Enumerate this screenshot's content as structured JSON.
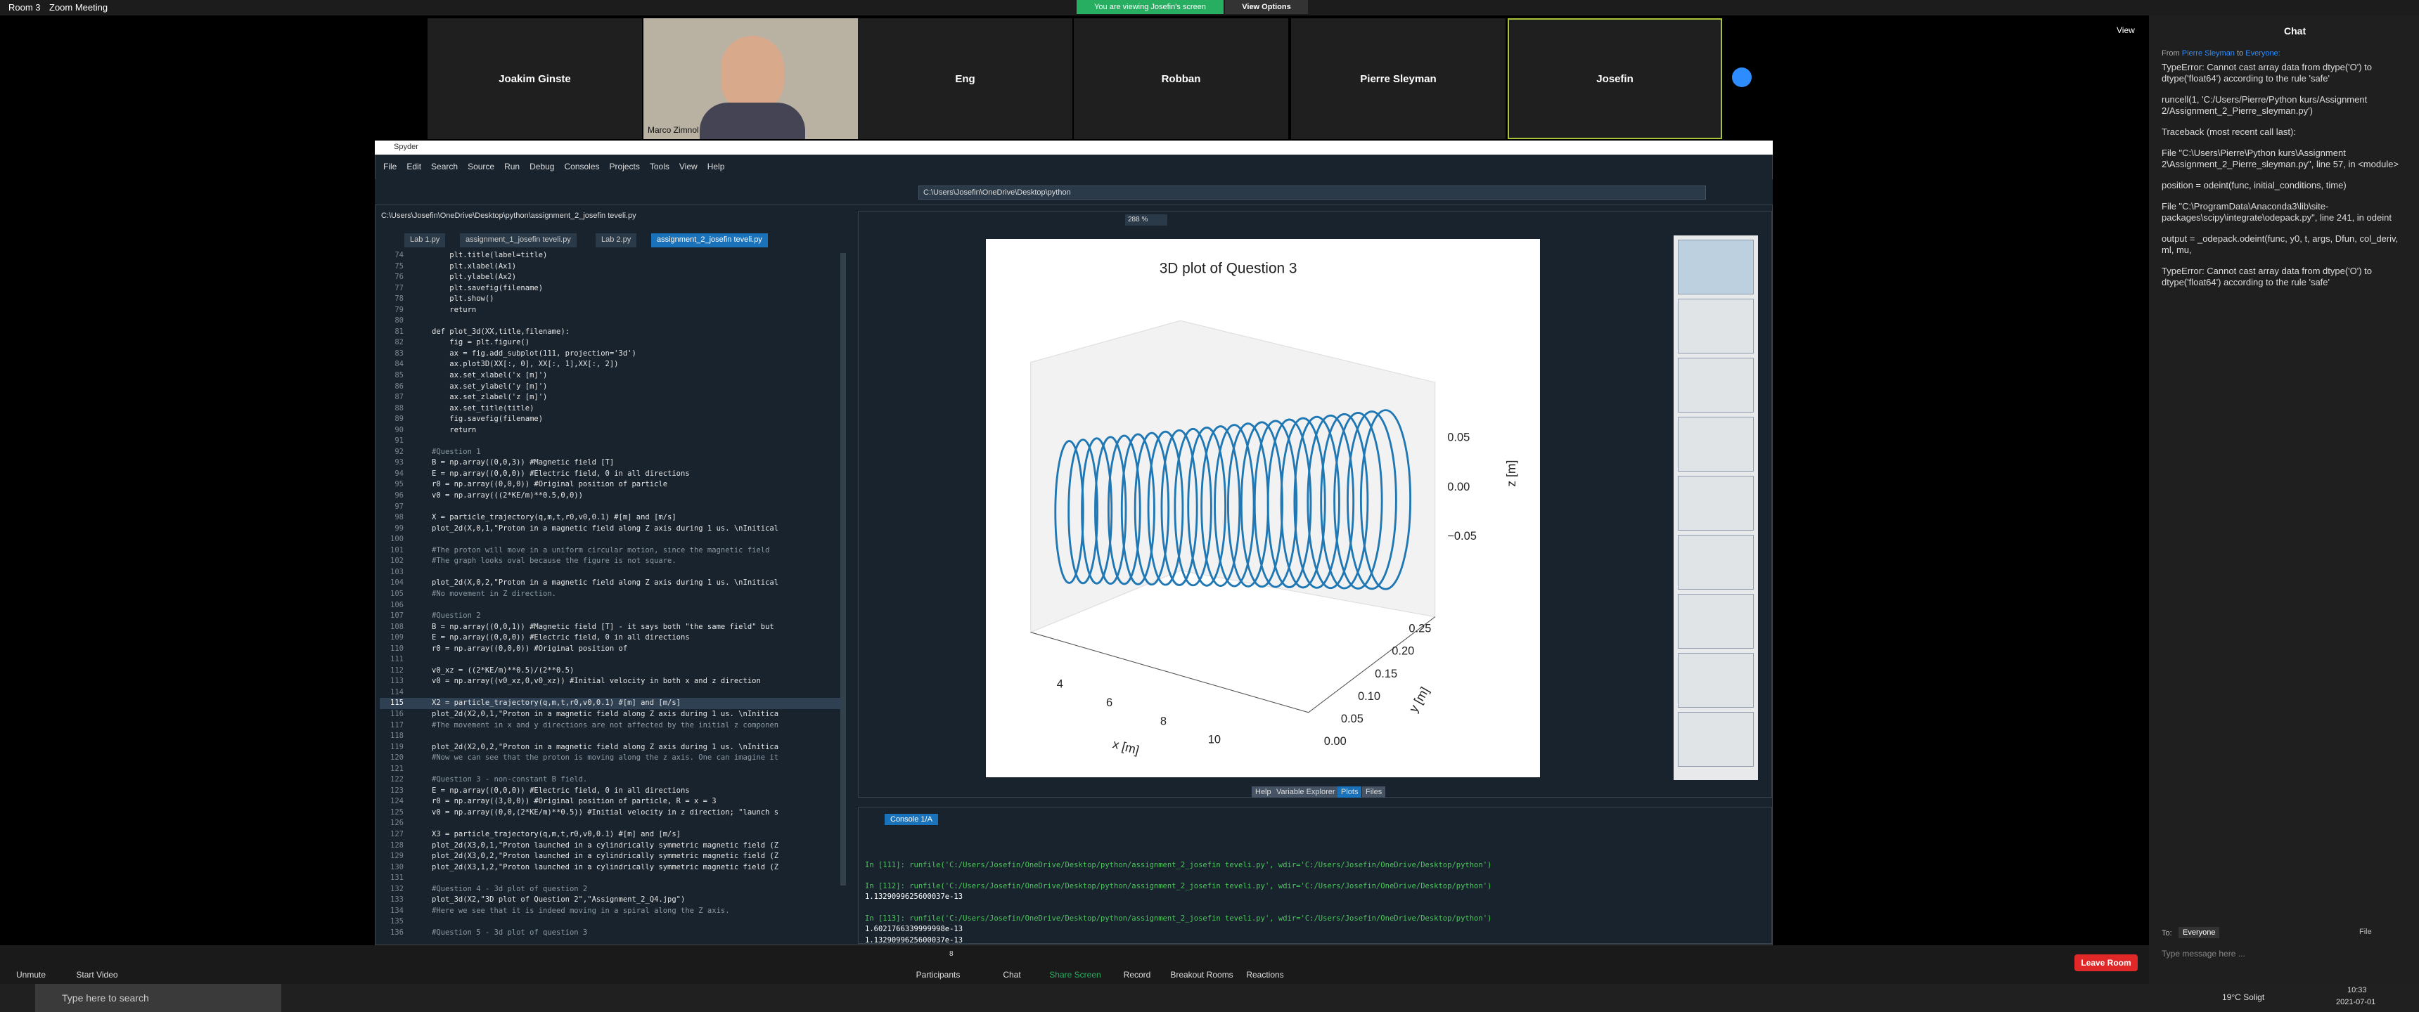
{
  "window": {
    "room": "Room 3",
    "app": "Zoom Meeting",
    "view": "View"
  },
  "banner": {
    "text": "You are viewing Josefin's screen",
    "button": "View Options"
  },
  "participants": [
    "Joakim Ginste",
    "Marco Zimnol",
    "Eng",
    "Robban",
    "Pierre Sleyman",
    "Josefin"
  ],
  "spyder": {
    "title": "Spyder",
    "menu": [
      "File",
      "Edit",
      "Search",
      "Source",
      "Run",
      "Debug",
      "Consoles",
      "Projects",
      "Tools",
      "View",
      "Help"
    ],
    "cwd": "C:\\Users\\Josefin\\OneDrive\\Desktop\\python",
    "editor_path": "C:\\Users\\Josefin\\OneDrive\\Desktop\\python\\assignment_2_josefin teveli.py",
    "tabs": [
      "Lab 1.py",
      "assignment_1_josefin teveli.py",
      "Lab 2.py",
      "assignment_2_josefin teveli.py"
    ],
    "code": [
      {
        "n": "74",
        "text": "    plt.title(label=title)"
      },
      {
        "n": "75",
        "text": "    plt.xlabel(Ax1)"
      },
      {
        "n": "76",
        "text": "    plt.ylabel(Ax2)"
      },
      {
        "n": "77",
        "text": "    plt.savefig(filename)"
      },
      {
        "n": "78",
        "text": "    plt.show()"
      },
      {
        "n": "79",
        "text": "    return"
      },
      {
        "n": "80"
      },
      {
        "n": "81",
        "text": "def plot_3d(XX,title,filename):"
      },
      {
        "n": "82",
        "text": "    fig = plt.figure()"
      },
      {
        "n": "83",
        "text": "    ax = fig.add_subplot(111, projection='3d')"
      },
      {
        "n": "84",
        "text": "    ax.plot3D(XX[:, 0], XX[:, 1],XX[:, 2])"
      },
      {
        "n": "85",
        "text": "    ax.set_xlabel('x [m]')"
      },
      {
        "n": "86",
        "text": "    ax.set_ylabel('y [m]')"
      },
      {
        "n": "87",
        "text": "    ax.set_zlabel('z [m]')"
      },
      {
        "n": "88",
        "text": "    ax.set_title(title)"
      },
      {
        "n": "89",
        "text": "    fig.savefig(filename)"
      },
      {
        "n": "90",
        "text": "    return"
      },
      {
        "n": "91"
      },
      {
        "n": "92",
        "text": "#Question 1"
      },
      {
        "n": "93",
        "text": "B = np.array((0,0,3)) #Magnetic field [T]"
      },
      {
        "n": "94",
        "text": "E = np.array((0,0,0)) #Electric field, 0 in all directions"
      },
      {
        "n": "95",
        "text": "r0 = np.array((0,0,0)) #Original position of particle"
      },
      {
        "n": "96",
        "text": "v0 = np.array(((2*KE/m)**0.5,0,0))"
      },
      {
        "n": "97"
      },
      {
        "n": "98",
        "text": "X = particle_trajectory(q,m,t,r0,v0,0.1) #[m] and [m/s]"
      },
      {
        "n": "99",
        "text": "plot_2d(X,0,1,\"Proton in a magnetic field along Z axis during 1 us. \\nInitical"
      },
      {
        "n": "100"
      },
      {
        "n": "101",
        "text": "#The proton will move in a uniform circular motion, since the magnetic field"
      },
      {
        "n": "102",
        "text": "#The graph looks oval because the figure is not square."
      },
      {
        "n": "103"
      },
      {
        "n": "104",
        "text": "plot_2d(X,0,2,\"Proton in a magnetic field along Z axis during 1 us. \\nInitical"
      },
      {
        "n": "105",
        "text": "#No movement in Z direction."
      },
      {
        "n": "106"
      },
      {
        "n": "107",
        "text": "#Question 2"
      },
      {
        "n": "108",
        "text": "B = np.array((0,0,1)) #Magnetic field [T] - it says both \"the same field\" but"
      },
      {
        "n": "109",
        "text": "E = np.array((0,0,0)) #Electric field, 0 in all directions"
      },
      {
        "n": "110",
        "text": "r0 = np.array((0,0,0)) #Original position of"
      },
      {
        "n": "111"
      },
      {
        "n": "112",
        "text": "v0_xz = ((2*KE/m)**0.5)/(2**0.5)"
      },
      {
        "n": "113",
        "text": "v0 = np.array((v0_xz,0,v0_xz)) #Initial velocity in both x and z direction"
      },
      {
        "n": "114"
      },
      {
        "n": "115",
        "text": "X2 = particle_trajectory(q,m,t,r0,v0,0.1) #[m] and [m/s]"
      },
      {
        "n": "116",
        "text": "plot_2d(X2,0,1,\"Proton in a magnetic field along Z axis during 1 us. \\nInitica"
      },
      {
        "n": "117",
        "text": "#The movement in x and y directions are not affected by the initial z componen"
      },
      {
        "n": "118"
      },
      {
        "n": "119",
        "text": "plot_2d(X2,0,2,\"Proton in a magnetic field along Z axis during 1 us. \\nInitica"
      },
      {
        "n": "120",
        "text": "#Now we can see that the proton is moving along the z axis. One can imagine it"
      },
      {
        "n": "121"
      },
      {
        "n": "122",
        "text": "#Question 3 - non-constant B field."
      },
      {
        "n": "123",
        "text": "E = np.array((0,0,0)) #Electric field, 0 in all directions"
      },
      {
        "n": "124",
        "text": "r0 = np.array((3,0,0)) #Original position of particle, R = x = 3"
      },
      {
        "n": "125",
        "text": "v0 = np.array((0,0,(2*KE/m)**0.5)) #Initial velocity in z direction; \"launch s"
      },
      {
        "n": "126"
      },
      {
        "n": "127",
        "text": "X3 = particle_trajectory(q,m,t,r0,v0,0.1) #[m] and [m/s]"
      },
      {
        "n": "128",
        "text": "plot_2d(X3,0,1,\"Proton launched in a cylindrically symmetric magnetic field (Z"
      },
      {
        "n": "129",
        "text": "plot_2d(X3,0,2,\"Proton launched in a cylindrically symmetric magnetic field (Z"
      },
      {
        "n": "130",
        "text": "plot_2d(X3,1,2,\"Proton launched in a cylindrically symmetric magnetic field (Z"
      },
      {
        "n": "131"
      },
      {
        "n": "132",
        "text": "#Question 4 - 3d plot of question 2"
      },
      {
        "n": "133",
        "text": "plot_3d(X2,\"3D plot of Question 2\",\"Assignment_2_Q4.jpg\")"
      },
      {
        "n": "134",
        "text": "#Here we see that it is indeed moving in a spiral along the Z axis."
      },
      {
        "n": "135"
      },
      {
        "n": "136",
        "text": "#Question 5 - 3d plot of question 3"
      }
    ],
    "zoom": "288 %",
    "plot": {
      "title": "3D plot of Question 3",
      "xlabel": "x [m]",
      "ylabel": "y [m]",
      "zlabel": "z [m]",
      "xticks": [
        "4",
        "6",
        "8",
        "10"
      ],
      "yticks": [
        "0.25",
        "0.20",
        "0.15",
        "0.10",
        "0.05",
        "0.00"
      ],
      "zticks": [
        "0.05",
        "0.00",
        "−0.05"
      ]
    },
    "pane_tabs": [
      "Help",
      "Variable Explorer",
      "Plots",
      "Files"
    ],
    "console_tab": "Console 1/A",
    "console": [
      "In [111]: runfile('C:/Users/Josefin/OneDrive/Desktop/python/assignment_2_josefin teveli.py', wdir='C:/Users/Josefin/OneDrive/Desktop/python')",
      "In [112]: runfile('C:/Users/Josefin/OneDrive/Desktop/python/assignment_2_josefin teveli.py', wdir='C:/Users/Josefin/OneDrive/Desktop/python')",
      "1.1329099625600037e-13",
      "In [113]: runfile('C:/Users/Josefin/OneDrive/Desktop/python/assignment_2_josefin teveli.py', wdir='C:/Users/Josefin/OneDrive/Desktop/python')",
      "1.6021766339999998e-13",
      "1.1329099625600037e-13"
    ]
  },
  "chat": {
    "title": "Chat",
    "from": "From",
    "sender": "Pierre Sleyman",
    "to_label": "to",
    "recipient": "Everyone:",
    "messages": [
      "TypeError: Cannot cast array data from dtype('O') to dtype('float64') according to the rule 'safe'",
      "runcell(1, 'C:/Users/Pierre/Python kurs/Assignment 2/Assignment_2_Pierre_sleyman.py')",
      "Traceback (most recent call last):",
      "File \"C:\\Users\\Pierre\\Python kurs\\Assignment 2\\Assignment_2_Pierre_sleyman.py\", line 57, in <module>",
      "position = odeint(func, initial_conditions, time)",
      "File \"C:\\ProgramData\\Anaconda3\\lib\\site-packages\\scipy\\integrate\\odepack.py\", line 241, in odeint",
      "output = _odepack.odeint(func, y0, t, args, Dfun, col_deriv, ml, mu,",
      "TypeError: Cannot cast array data from dtype('O') to dtype('float64') according to the rule 'safe'"
    ],
    "to": "To:",
    "everyone": "Everyone",
    "file": "File",
    "placeholder": "Type message here ..."
  },
  "toolbar": {
    "unmute": "Unmute",
    "video": "Start Video",
    "participants": "Participants",
    "count": "8",
    "chat": "Chat",
    "share": "Share Screen",
    "record": "Record",
    "breakout": "Breakout Rooms",
    "reactions": "Reactions",
    "leave": "Leave Room"
  },
  "taskbar": {
    "search": "Type here to search",
    "weather": "19°C Soligt",
    "time": "10:33",
    "date": "2021-07-01"
  }
}
